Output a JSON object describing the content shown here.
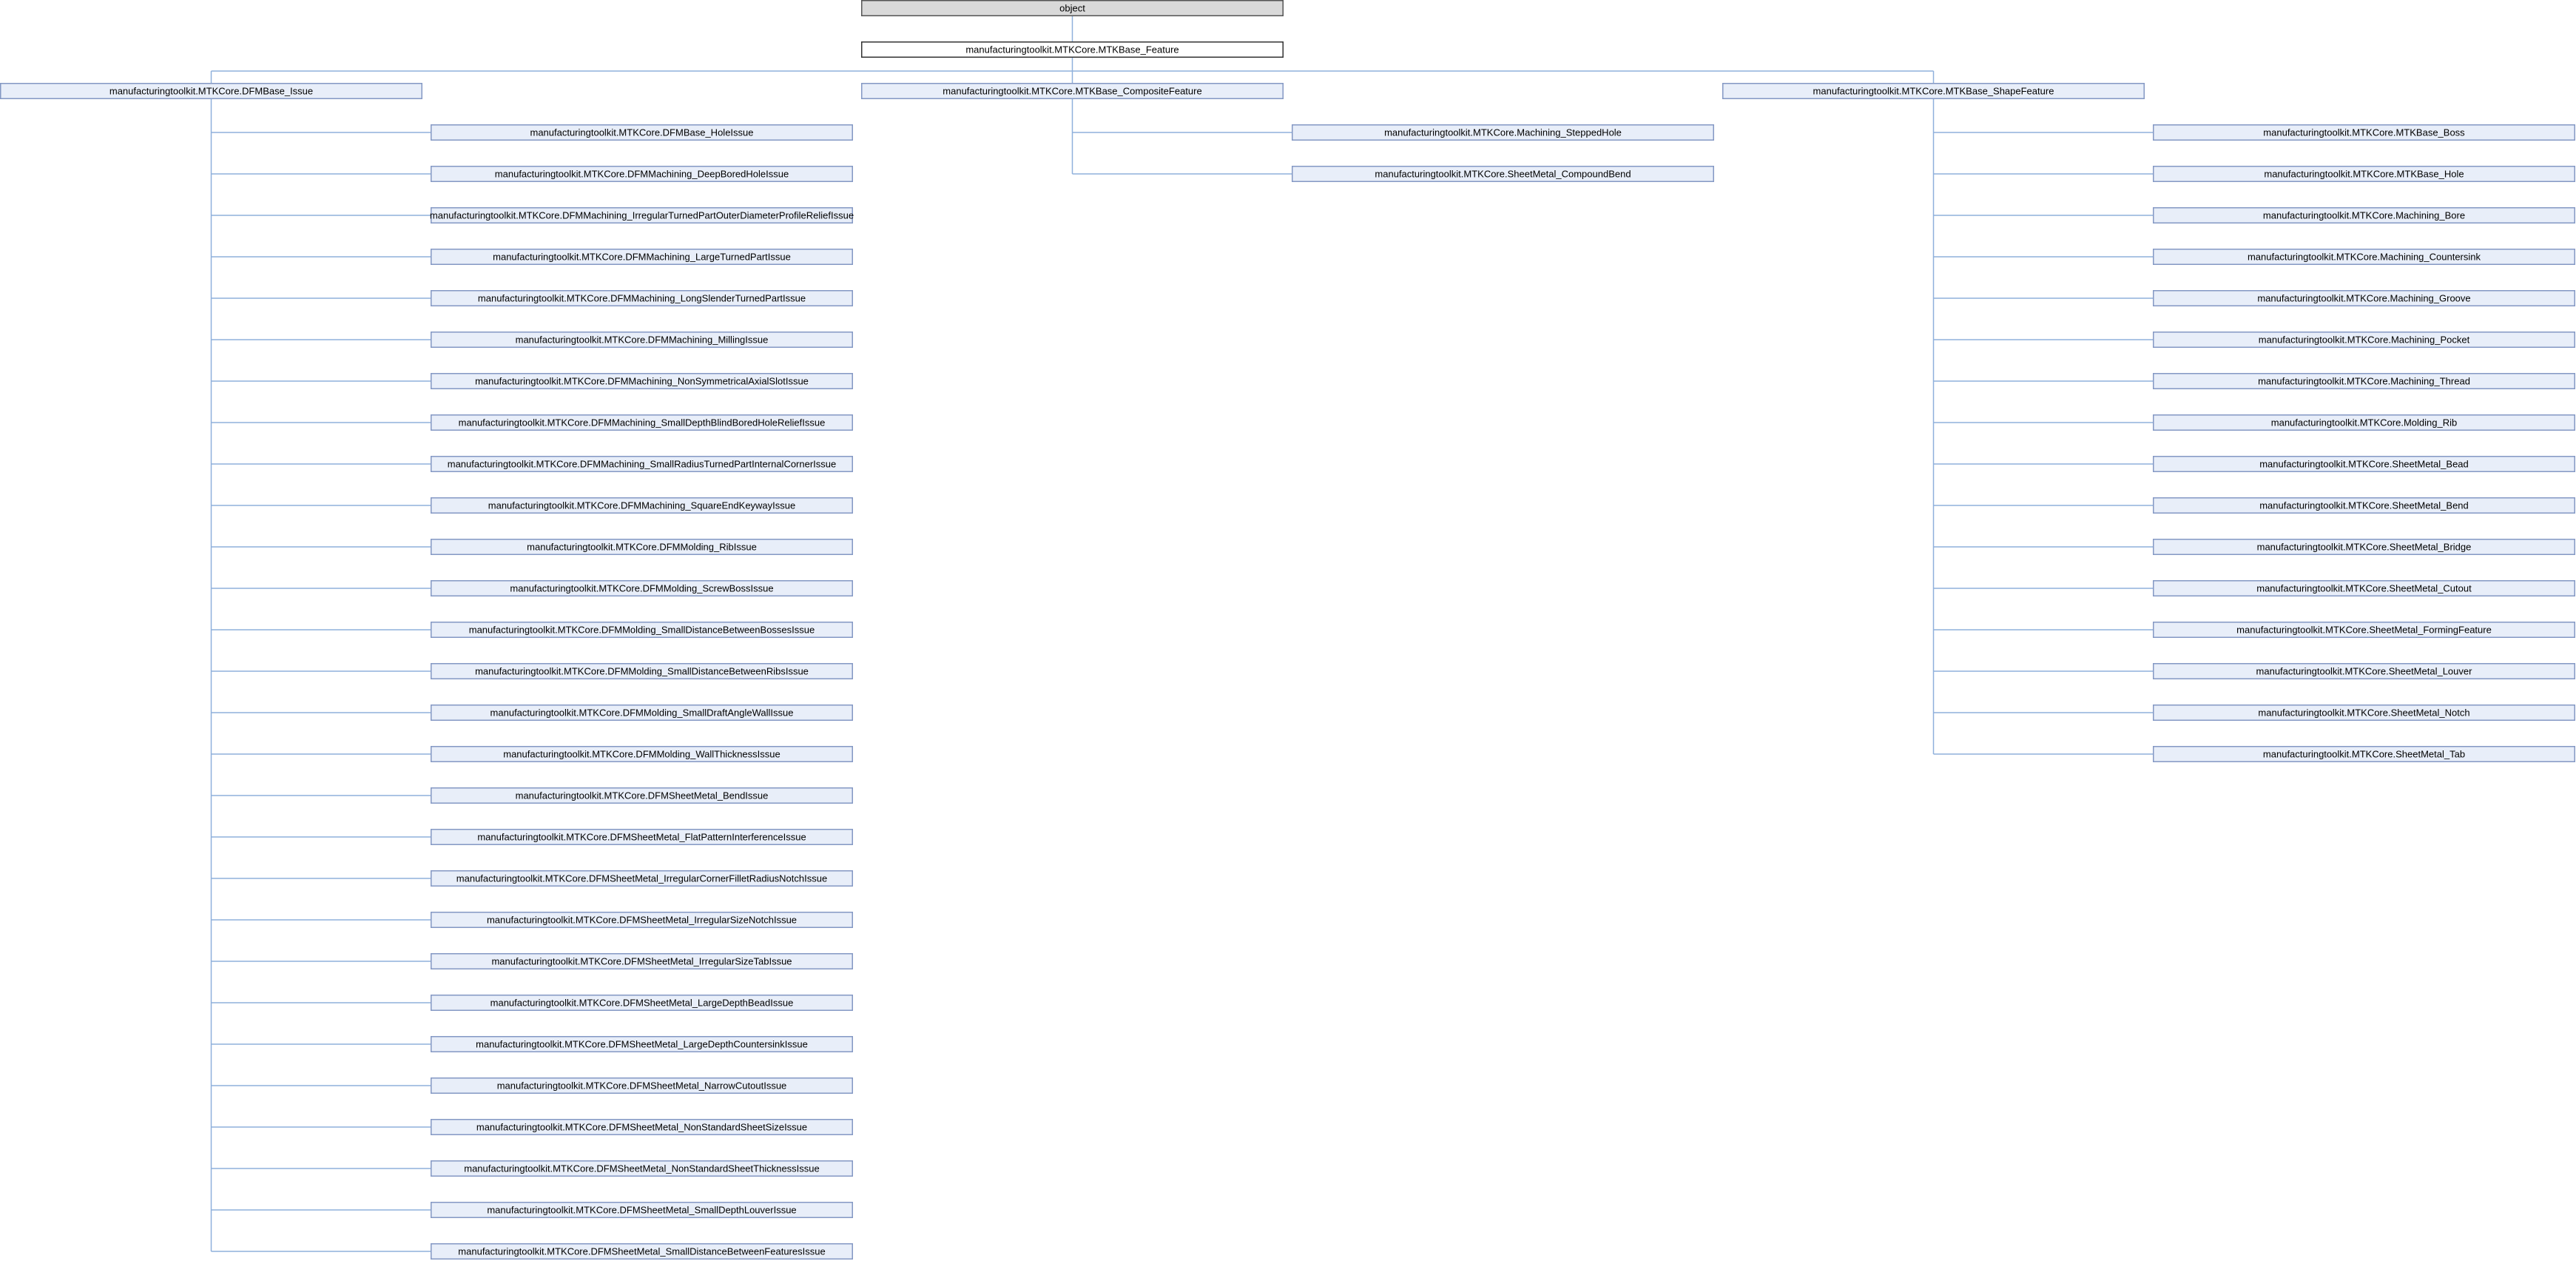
{
  "root": {
    "label": "object"
  },
  "base": {
    "label": "manufacturingtoolkit.MTKCore.MTKBase_Feature"
  },
  "groups": [
    {
      "label": "manufacturingtoolkit.MTKCore.DFMBase_Issue",
      "children": [
        "manufacturingtoolkit.MTKCore.DFMBase_HoleIssue",
        "manufacturingtoolkit.MTKCore.DFMMachining_DeepBoredHoleIssue",
        "manufacturingtoolkit.MTKCore.DFMMachining_IrregularTurnedPartOuterDiameterProfileReliefIssue",
        "manufacturingtoolkit.MTKCore.DFMMachining_LargeTurnedPartIssue",
        "manufacturingtoolkit.MTKCore.DFMMachining_LongSlenderTurnedPartIssue",
        "manufacturingtoolkit.MTKCore.DFMMachining_MillingIssue",
        "manufacturingtoolkit.MTKCore.DFMMachining_NonSymmetricalAxialSlotIssue",
        "manufacturingtoolkit.MTKCore.DFMMachining_SmallDepthBlindBoredHoleReliefIssue",
        "manufacturingtoolkit.MTKCore.DFMMachining_SmallRadiusTurnedPartInternalCornerIssue",
        "manufacturingtoolkit.MTKCore.DFMMachining_SquareEndKeywayIssue",
        "manufacturingtoolkit.MTKCore.DFMMolding_RibIssue",
        "manufacturingtoolkit.MTKCore.DFMMolding_ScrewBossIssue",
        "manufacturingtoolkit.MTKCore.DFMMolding_SmallDistanceBetweenBossesIssue",
        "manufacturingtoolkit.MTKCore.DFMMolding_SmallDistanceBetweenRibsIssue",
        "manufacturingtoolkit.MTKCore.DFMMolding_SmallDraftAngleWallIssue",
        "manufacturingtoolkit.MTKCore.DFMMolding_WallThicknessIssue",
        "manufacturingtoolkit.MTKCore.DFMSheetMetal_BendIssue",
        "manufacturingtoolkit.MTKCore.DFMSheetMetal_FlatPatternInterferenceIssue",
        "manufacturingtoolkit.MTKCore.DFMSheetMetal_IrregularCornerFilletRadiusNotchIssue",
        "manufacturingtoolkit.MTKCore.DFMSheetMetal_IrregularSizeNotchIssue",
        "manufacturingtoolkit.MTKCore.DFMSheetMetal_IrregularSizeTabIssue",
        "manufacturingtoolkit.MTKCore.DFMSheetMetal_LargeDepthBeadIssue",
        "manufacturingtoolkit.MTKCore.DFMSheetMetal_LargeDepthCountersinkIssue",
        "manufacturingtoolkit.MTKCore.DFMSheetMetal_NarrowCutoutIssue",
        "manufacturingtoolkit.MTKCore.DFMSheetMetal_NonStandardSheetSizeIssue",
        "manufacturingtoolkit.MTKCore.DFMSheetMetal_NonStandardSheetThicknessIssue",
        "manufacturingtoolkit.MTKCore.DFMSheetMetal_SmallDepthLouverIssue",
        "manufacturingtoolkit.MTKCore.DFMSheetMetal_SmallDistanceBetweenFeaturesIssue"
      ]
    },
    {
      "label": "manufacturingtoolkit.MTKCore.MTKBase_CompositeFeature",
      "children": [
        "manufacturingtoolkit.MTKCore.Machining_SteppedHole",
        "manufacturingtoolkit.MTKCore.SheetMetal_CompoundBend"
      ]
    },
    {
      "label": "manufacturingtoolkit.MTKCore.MTKBase_ShapeFeature",
      "children": [
        "manufacturingtoolkit.MTKCore.MTKBase_Boss",
        "manufacturingtoolkit.MTKCore.MTKBase_Hole",
        "manufacturingtoolkit.MTKCore.Machining_Bore",
        "manufacturingtoolkit.MTKCore.Machining_Countersink",
        "manufacturingtoolkit.MTKCore.Machining_Groove",
        "manufacturingtoolkit.MTKCore.Machining_Pocket",
        "manufacturingtoolkit.MTKCore.Machining_Thread",
        "manufacturingtoolkit.MTKCore.Molding_Rib",
        "manufacturingtoolkit.MTKCore.SheetMetal_Bead",
        "manufacturingtoolkit.MTKCore.SheetMetal_Bend",
        "manufacturingtoolkit.MTKCore.SheetMetal_Bridge",
        "manufacturingtoolkit.MTKCore.SheetMetal_Cutout",
        "manufacturingtoolkit.MTKCore.SheetMetal_FormingFeature",
        "manufacturingtoolkit.MTKCore.SheetMetal_Louver",
        "manufacturingtoolkit.MTKCore.SheetMetal_Notch",
        "manufacturingtoolkit.MTKCore.SheetMetal_Tab"
      ]
    }
  ]
}
